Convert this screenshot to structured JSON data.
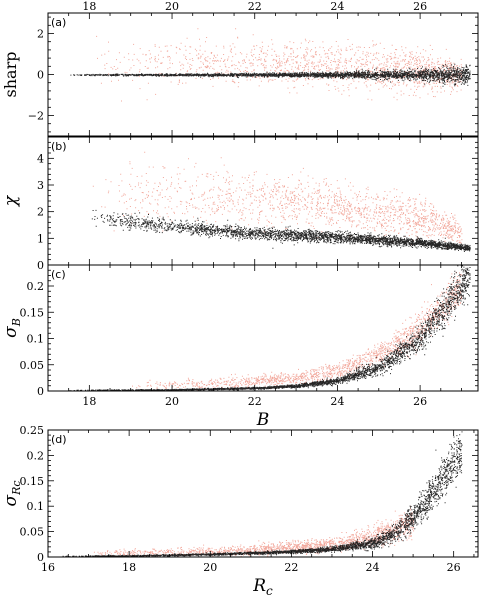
{
  "chart_data": [
    {
      "type": "scatter",
      "panel_label": "(a)",
      "ylabel": "sharp",
      "xlim": [
        17.0,
        27.4
      ],
      "ylim": [
        -3.0,
        3.0
      ],
      "x_ticks": [
        18,
        20,
        22,
        24,
        26
      ],
      "y_ticks": [
        -2,
        0,
        2
      ],
      "top_tick_labels": [
        "18",
        "20",
        "22",
        "24",
        "26"
      ],
      "y_tick_labels": [
        "−2",
        "0",
        "2"
      ],
      "series": [
        {
          "color": "#000000",
          "trend": {
            "x": [
              17.5,
              20,
              22,
              24,
              25,
              26,
              27.2
            ],
            "y": [
              0,
              0,
              0,
              0,
              0,
              0,
              0
            ],
            "spread": [
              0.03,
              0.06,
              0.08,
              0.12,
              0.18,
              0.28,
              0.45
            ]
          }
        },
        {
          "color": "#e8604a",
          "trend": {
            "x": [
              18,
              20,
              22,
              24,
              26,
              27
            ],
            "y": [
              0.5,
              0.6,
              0.5,
              0.4,
              0.2,
              0.0
            ],
            "spread": [
              1.0,
              1.1,
              1.1,
              1.1,
              1.0,
              0.7
            ]
          }
        }
      ]
    },
    {
      "type": "scatter",
      "panel_label": "(b)",
      "ylabel": "χ",
      "xlim": [
        17.0,
        27.4
      ],
      "ylim": [
        0,
        4.8
      ],
      "x_ticks": [
        18,
        20,
        22,
        24,
        26
      ],
      "y_ticks": [
        0,
        1,
        2,
        3,
        4
      ],
      "y_tick_labels": [
        "0",
        "1",
        "2",
        "3",
        "4"
      ],
      "series": [
        {
          "color": "#000000",
          "trend": {
            "x": [
              18,
              19,
              20,
              22,
              24,
              26,
              27.2
            ],
            "y": [
              1.85,
              1.6,
              1.45,
              1.2,
              1.05,
              0.85,
              0.65
            ],
            "spread": [
              0.3,
              0.3,
              0.25,
              0.22,
              0.2,
              0.15,
              0.1
            ]
          }
        },
        {
          "color": "#e8604a",
          "trend": {
            "x": [
              18,
              20,
              22,
              24,
              26,
              27
            ],
            "y": [
              2.6,
              2.7,
              2.5,
              2.2,
              1.8,
              1.2
            ],
            "spread": [
              1.0,
              1.1,
              1.0,
              0.9,
              0.7,
              0.4
            ]
          }
        }
      ]
    },
    {
      "type": "scatter",
      "panel_label": "(c)",
      "ylabel": "σB",
      "xlabel": "B",
      "xlim": [
        17.0,
        27.4
      ],
      "ylim": [
        0,
        0.24
      ],
      "x_ticks": [
        18,
        20,
        22,
        24,
        26
      ],
      "y_ticks": [
        0,
        0.05,
        0.1,
        0.15,
        0.2
      ],
      "x_tick_labels": [
        "18",
        "20",
        "22",
        "24",
        "26"
      ],
      "y_tick_labels": [
        "0",
        "0.05",
        "0.1",
        "0.15",
        "0.2"
      ],
      "series": [
        {
          "color": "#000000",
          "trend": {
            "x": [
              17.5,
              20,
              22,
              23,
              24,
              25,
              26,
              27.2
            ],
            "y": [
              0.002,
              0.003,
              0.006,
              0.01,
              0.02,
              0.045,
              0.1,
              0.22
            ],
            "spread": [
              0.001,
              0.001,
              0.002,
              0.003,
              0.006,
              0.012,
              0.025,
              0.04
            ]
          }
        },
        {
          "color": "#e8604a",
          "trend": {
            "x": [
              19,
              21,
              23,
              24,
              25,
              26,
              27
            ],
            "y": [
              0.01,
              0.015,
              0.025,
              0.04,
              0.07,
              0.12,
              0.2
            ],
            "spread": [
              0.008,
              0.01,
              0.012,
              0.015,
              0.02,
              0.03,
              0.04
            ]
          }
        }
      ]
    },
    {
      "type": "scatter",
      "panel_label": "(d)",
      "ylabel": "σRc",
      "xlabel": "Rc",
      "xlim": [
        16.0,
        26.6
      ],
      "ylim": [
        0,
        0.25
      ],
      "x_ticks": [
        16,
        18,
        20,
        22,
        24,
        26
      ],
      "y_ticks": [
        0,
        0.05,
        0.1,
        0.15,
        0.2,
        0.25
      ],
      "x_tick_labels": [
        "16",
        "18",
        "20",
        "22",
        "24",
        "26"
      ],
      "y_tick_labels": [
        "0",
        "0.05",
        "0.1",
        "0.15",
        "0.2",
        "0.25"
      ],
      "series": [
        {
          "color": "#000000",
          "trend": {
            "x": [
              16.3,
              18,
              20,
              22,
              23,
              24,
              24.5,
              25,
              25.5,
              26.2
            ],
            "y": [
              0.002,
              0.003,
              0.006,
              0.011,
              0.016,
              0.028,
              0.045,
              0.08,
              0.13,
              0.21
            ],
            "spread": [
              0.001,
              0.001,
              0.002,
              0.003,
              0.005,
              0.01,
              0.015,
              0.025,
              0.035,
              0.04
            ]
          }
        },
        {
          "color": "#e8604a",
          "trend": {
            "x": [
              17,
              19,
              21,
              23,
              24,
              25
            ],
            "y": [
              0.008,
              0.01,
              0.015,
              0.025,
              0.04,
              0.07
            ],
            "spread": [
              0.006,
              0.008,
              0.01,
              0.012,
              0.02,
              0.03
            ]
          }
        }
      ]
    }
  ]
}
